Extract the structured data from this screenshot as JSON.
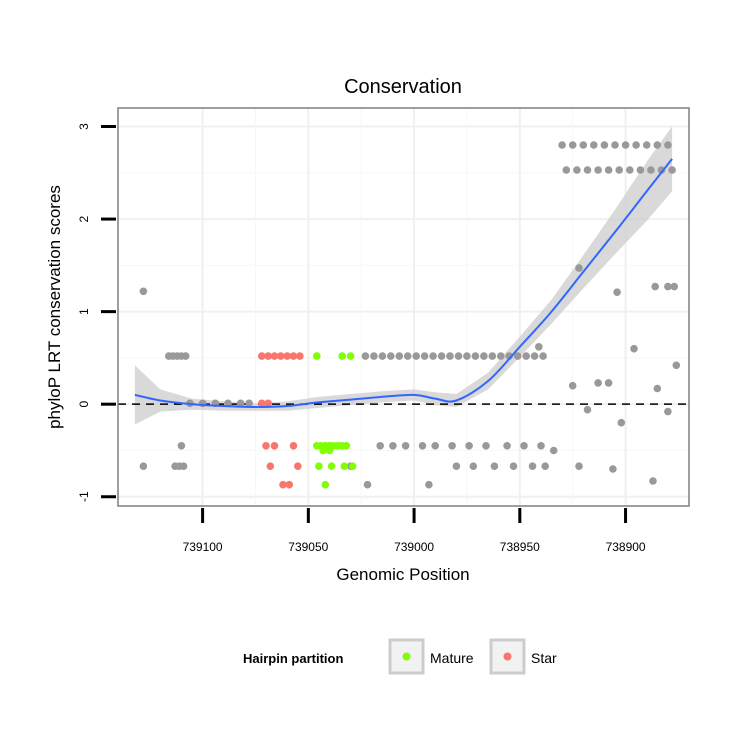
{
  "chart_data": {
    "type": "scatter",
    "title": "Conservation",
    "xlabel": "Genomic Position",
    "ylabel": "phyloP LRT conservation scores",
    "x_reversed": true,
    "xlim": [
      739140,
      738870
    ],
    "ylim": [
      -1.1,
      3.2
    ],
    "x_ticks": [
      739100,
      739050,
      739000,
      738950,
      738900
    ],
    "y_ticks": [
      -1,
      0,
      1,
      2,
      3
    ],
    "grid": true,
    "reference_line": {
      "y": 0,
      "style": "dashed",
      "color": "#000000"
    },
    "legend": {
      "title": "Hairpin partition",
      "position": "bottom",
      "entries": [
        {
          "label": "Mature",
          "color": "#7fff00"
        },
        {
          "label": "Star",
          "color": "#f8766d"
        }
      ]
    },
    "colors": {
      "Other": "#999999",
      "Mature": "#7fff00",
      "Star": "#f8766d",
      "smooth": "#3366ff",
      "ribbon": "#cccccc"
    },
    "series": [
      {
        "name": "Other",
        "points": [
          [
            739128,
            1.22
          ],
          [
            739128,
            -0.67
          ],
          [
            739116,
            0.52
          ],
          [
            739114,
            0.52
          ],
          [
            739112,
            0.52
          ],
          [
            739110,
            0.52
          ],
          [
            739108,
            0.52
          ],
          [
            739113,
            -0.67
          ],
          [
            739111,
            -0.67
          ],
          [
            739109,
            -0.67
          ],
          [
            739110,
            -0.45
          ],
          [
            739106,
            0.01
          ],
          [
            739100,
            0.01
          ],
          [
            739094,
            0.01
          ],
          [
            739088,
            0.01
          ],
          [
            739082,
            0.01
          ],
          [
            739078,
            0.01
          ],
          [
            739023,
            0.52
          ],
          [
            739019,
            0.52
          ],
          [
            739015,
            0.52
          ],
          [
            739011,
            0.52
          ],
          [
            739007,
            0.52
          ],
          [
            739003,
            0.52
          ],
          [
            738999,
            0.52
          ],
          [
            738995,
            0.52
          ],
          [
            738991,
            0.52
          ],
          [
            738987,
            0.52
          ],
          [
            738983,
            0.52
          ],
          [
            738979,
            0.52
          ],
          [
            738975,
            0.52
          ],
          [
            738971,
            0.52
          ],
          [
            738967,
            0.52
          ],
          [
            738963,
            0.52
          ],
          [
            738959,
            0.52
          ],
          [
            738955,
            0.52
          ],
          [
            738951,
            0.52
          ],
          [
            738947,
            0.52
          ],
          [
            738943,
            0.52
          ],
          [
            738939,
            0.52
          ],
          [
            739040,
            -0.45
          ],
          [
            739036,
            -0.45
          ],
          [
            739030,
            -0.67
          ],
          [
            739022,
            -0.87
          ],
          [
            739016,
            -0.45
          ],
          [
            739010,
            -0.45
          ],
          [
            739004,
            -0.45
          ],
          [
            738996,
            -0.45
          ],
          [
            738990,
            -0.45
          ],
          [
            738982,
            -0.45
          ],
          [
            738974,
            -0.45
          ],
          [
            738966,
            -0.45
          ],
          [
            738956,
            -0.45
          ],
          [
            738948,
            -0.45
          ],
          [
            738940,
            -0.45
          ],
          [
            738934,
            -0.5
          ],
          [
            738993,
            -0.87
          ],
          [
            738980,
            -0.67
          ],
          [
            738972,
            -0.67
          ],
          [
            738962,
            -0.67
          ],
          [
            738953,
            -0.67
          ],
          [
            738944,
            -0.67
          ],
          [
            738938,
            -0.67
          ],
          [
            738922,
            -0.67
          ],
          [
            738941,
            0.62
          ],
          [
            738922,
            1.47
          ],
          [
            738904,
            1.21
          ],
          [
            738886,
            1.27
          ],
          [
            738880,
            1.27
          ],
          [
            738877,
            1.27
          ],
          [
            738896,
            0.6
          ],
          [
            738913,
            0.23
          ],
          [
            738925,
            0.2
          ],
          [
            738908,
            0.23
          ],
          [
            738885,
            0.17
          ],
          [
            738876,
            0.42
          ],
          [
            738918,
            -0.06
          ],
          [
            738902,
            -0.2
          ],
          [
            738880,
            -0.08
          ],
          [
            738906,
            -0.7
          ],
          [
            738887,
            -0.83
          ],
          [
            738930,
            2.8
          ],
          [
            738925,
            2.8
          ],
          [
            738920,
            2.8
          ],
          [
            738915,
            2.8
          ],
          [
            738910,
            2.8
          ],
          [
            738905,
            2.8
          ],
          [
            738900,
            2.8
          ],
          [
            738895,
            2.8
          ],
          [
            738890,
            2.8
          ],
          [
            738885,
            2.8
          ],
          [
            738880,
            2.8
          ],
          [
            738928,
            2.53
          ],
          [
            738923,
            2.53
          ],
          [
            738918,
            2.53
          ],
          [
            738913,
            2.53
          ],
          [
            738908,
            2.53
          ],
          [
            738903,
            2.53
          ],
          [
            738898,
            2.53
          ],
          [
            738893,
            2.53
          ],
          [
            738888,
            2.53
          ],
          [
            738883,
            2.53
          ],
          [
            738878,
            2.53
          ]
        ]
      },
      {
        "name": "Mature",
        "points": [
          [
            739046,
            0.52
          ],
          [
            739034,
            0.52
          ],
          [
            739030,
            0.52
          ],
          [
            739046,
            -0.45
          ],
          [
            739044,
            -0.45
          ],
          [
            739042,
            -0.45
          ],
          [
            739040,
            -0.45
          ],
          [
            739038,
            -0.45
          ],
          [
            739036,
            -0.45
          ],
          [
            739034,
            -0.45
          ],
          [
            739032,
            -0.45
          ],
          [
            739045,
            -0.67
          ],
          [
            739039,
            -0.67
          ],
          [
            739033,
            -0.67
          ],
          [
            739029,
            -0.67
          ],
          [
            739043,
            -0.5
          ],
          [
            739040,
            -0.5
          ],
          [
            739042,
            -0.87
          ]
        ]
      },
      {
        "name": "Star",
        "points": [
          [
            739072,
            0.52
          ],
          [
            739069,
            0.52
          ],
          [
            739066,
            0.52
          ],
          [
            739063,
            0.52
          ],
          [
            739060,
            0.52
          ],
          [
            739057,
            0.52
          ],
          [
            739054,
            0.52
          ],
          [
            739072,
            0.01
          ],
          [
            739069,
            0.01
          ],
          [
            739070,
            -0.45
          ],
          [
            739066,
            -0.45
          ],
          [
            739057,
            -0.45
          ],
          [
            739068,
            -0.67
          ],
          [
            739055,
            -0.67
          ],
          [
            739062,
            -0.87
          ],
          [
            739059,
            -0.87
          ]
        ]
      }
    ],
    "smooth": {
      "x": [
        739132,
        739120,
        739105,
        739090,
        739075,
        739060,
        739045,
        739030,
        739015,
        739000,
        738990,
        738980,
        738965,
        738950,
        738935,
        738920,
        738905,
        738890,
        738878
      ],
      "y": [
        0.1,
        0.04,
        0.0,
        -0.02,
        -0.03,
        -0.02,
        0.02,
        0.05,
        0.08,
        0.1,
        0.06,
        0.04,
        0.25,
        0.62,
        1.0,
        1.43,
        1.86,
        2.3,
        2.65
      ],
      "lower": [
        -0.22,
        -0.08,
        -0.06,
        -0.07,
        -0.07,
        -0.07,
        -0.04,
        -0.01,
        0.02,
        0.04,
        -0.01,
        -0.03,
        0.16,
        0.51,
        0.87,
        1.25,
        1.62,
        1.98,
        2.3
      ],
      "upper": [
        0.42,
        0.16,
        0.06,
        0.03,
        0.01,
        0.03,
        0.08,
        0.11,
        0.14,
        0.16,
        0.13,
        0.11,
        0.34,
        0.73,
        1.13,
        1.61,
        2.1,
        2.62,
        3.0
      ]
    }
  }
}
